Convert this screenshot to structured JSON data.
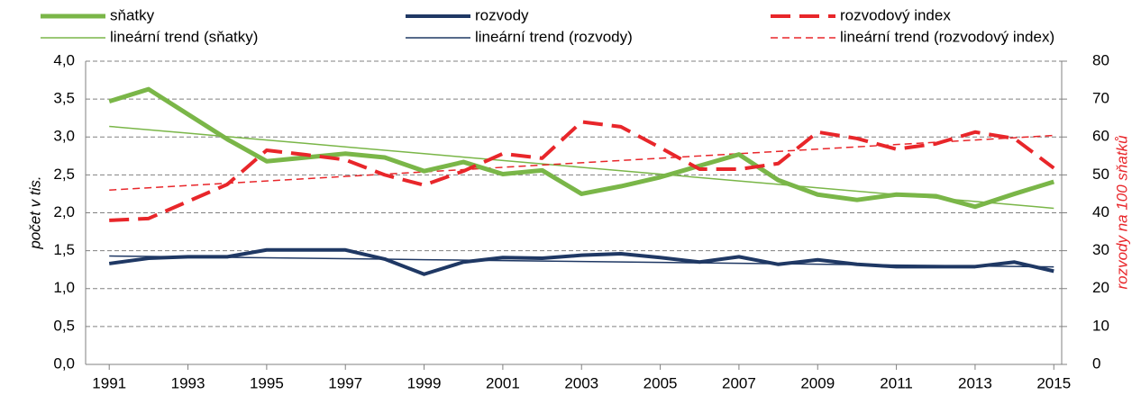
{
  "chart_data": {
    "type": "line",
    "x": [
      1991,
      1992,
      1993,
      1994,
      1995,
      1996,
      1997,
      1998,
      1999,
      2000,
      2001,
      2002,
      2003,
      2004,
      2005,
      2006,
      2007,
      2008,
      2009,
      2010,
      2011,
      2012,
      2013,
      2014,
      2015
    ],
    "xlim": [
      1990.4,
      2015.2
    ],
    "xticks": [
      1991,
      1993,
      1995,
      1997,
      1999,
      2001,
      2003,
      2005,
      2007,
      2009,
      2011,
      2013,
      2015
    ],
    "ylim": [
      0,
      4
    ],
    "yticks": [
      {
        "value": 0,
        "label": "0,0"
      },
      {
        "value": 0.5,
        "label": "0,5"
      },
      {
        "value": 1,
        "label": "1,0"
      },
      {
        "value": 1.5,
        "label": "1,5"
      },
      {
        "value": 2,
        "label": "2,0"
      },
      {
        "value": 2.5,
        "label": "2,5"
      },
      {
        "value": 3,
        "label": "3,0"
      },
      {
        "value": 3.5,
        "label": "3,5"
      },
      {
        "value": 4,
        "label": "4,0"
      }
    ],
    "y2lim": [
      0,
      80
    ],
    "y2ticks": [
      0,
      10,
      20,
      30,
      40,
      50,
      60,
      70,
      80
    ],
    "ylabel": "počet v tis.",
    "y2label": "rozvody na 100 sňatků",
    "grid": true,
    "series": [
      {
        "name": "sňatky",
        "color": "#7ab648",
        "width": 5,
        "dash": "solid",
        "values": [
          3.47,
          3.63,
          3.3,
          2.97,
          2.68,
          2.73,
          2.78,
          2.73,
          2.55,
          2.67,
          2.51,
          2.56,
          2.25,
          2.35,
          2.47,
          2.62,
          2.77,
          2.43,
          2.24,
          2.17,
          2.24,
          2.22,
          2.08,
          2.25,
          2.41
        ]
      },
      {
        "name": "rozvody",
        "color": "#1f3864",
        "width": 4,
        "dash": "solid",
        "values": [
          1.33,
          1.4,
          1.42,
          1.42,
          1.51,
          1.51,
          1.51,
          1.39,
          1.19,
          1.35,
          1.41,
          1.4,
          1.44,
          1.46,
          1.41,
          1.35,
          1.42,
          1.32,
          1.38,
          1.32,
          1.29,
          1.29,
          1.29,
          1.35,
          1.23
        ]
      },
      {
        "name": "rozvodový index",
        "color": "#e8262a",
        "width": 4,
        "dash": "dashed",
        "axis": "y2",
        "values": [
          38,
          38.5,
          43,
          47.5,
          56.5,
          55.3,
          54,
          50,
          47.3,
          51,
          55.6,
          54.4,
          64,
          62.7,
          57.2,
          51.5,
          51.5,
          53,
          61.3,
          59.6,
          56.8,
          58.2,
          61.3,
          59.6,
          51.8
        ]
      },
      {
        "name": "lineární trend (sňatky)",
        "color": "#7ab648",
        "width": 1.5,
        "dash": "solid",
        "values": [
          3.14,
          3.095,
          3.05,
          3.005,
          2.96,
          2.915,
          2.87,
          2.825,
          2.78,
          2.735,
          2.69,
          2.645,
          2.6,
          2.555,
          2.51,
          2.465,
          2.42,
          2.375,
          2.33,
          2.285,
          2.24,
          2.195,
          2.15,
          2.105,
          2.06
        ]
      },
      {
        "name": "lineární trend (rozvody)",
        "color": "#1f3864",
        "width": 1.5,
        "dash": "solid",
        "values": [
          1.43,
          1.424,
          1.418,
          1.412,
          1.406,
          1.4,
          1.394,
          1.388,
          1.382,
          1.376,
          1.37,
          1.364,
          1.358,
          1.352,
          1.346,
          1.34,
          1.334,
          1.328,
          1.322,
          1.316,
          1.31,
          1.304,
          1.298,
          1.292,
          1.286
        ]
      },
      {
        "name": "lineární trend (rozvodový index)",
        "color": "#e8262a",
        "width": 1.5,
        "dash": "dashed",
        "axis": "y2",
        "values": [
          46,
          46.6,
          47.2,
          47.8,
          48.4,
          49,
          49.6,
          50.2,
          50.8,
          51.4,
          52,
          52.6,
          53.2,
          53.8,
          54.4,
          55,
          55.6,
          56.2,
          56.8,
          57.4,
          58,
          58.6,
          59.2,
          59.8,
          60.4
        ]
      }
    ]
  }
}
